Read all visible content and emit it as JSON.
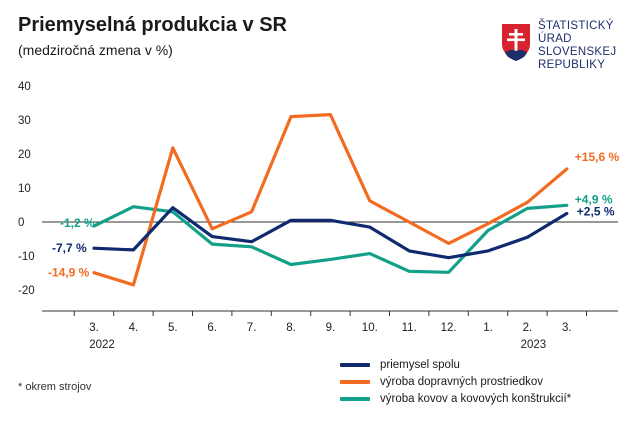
{
  "header": {
    "title": "Priemyselná produkcia v SR",
    "subtitle": "(medziročná zmena v %)"
  },
  "logo": {
    "lines": [
      "ŠTATISTICKÝ",
      "ÚRAD",
      "SLOVENSKEJ",
      "REPUBLIKY"
    ],
    "color": "#1f2e6b",
    "shield_red": "#d7232e",
    "shield_blue": "#1f2e6b"
  },
  "footnote": "* okrem strojov",
  "chart_data": {
    "type": "line",
    "title": "Priemyselná produkcia v SR",
    "subtitle": "(medziročná zmena v %)",
    "ylim": [
      -25,
      40
    ],
    "yticks": [
      -20,
      -10,
      0,
      10,
      20,
      30,
      40
    ],
    "ytick_labels": [
      "-20",
      "-10",
      "0",
      "10",
      "20",
      "30",
      "40"
    ],
    "categories": [
      "3.",
      "4.",
      "5.",
      "6.",
      "7.",
      "8.",
      "9.",
      "10.",
      "11.",
      "12.",
      "1.",
      "2.",
      "3."
    ],
    "year_labels": [
      {
        "label": "2022",
        "at_index": 0
      },
      {
        "label": "2023",
        "at_index": 11
      }
    ],
    "grid": "horizontal-zero-line-only",
    "legend_position": "bottom-right",
    "series": [
      {
        "name": "priemysel spolu",
        "color": "#0f2a6e",
        "values": [
          -7.7,
          -8.2,
          4.2,
          -4.3,
          -5.8,
          0.5,
          0.5,
          -1.5,
          -8.5,
          -10.5,
          -8.5,
          -4.5,
          2.5
        ],
        "start_label": "-7,7 %",
        "end_label": "+2,5 %"
      },
      {
        "name": "výroba dopravných prostriedkov",
        "color": "#f26b21",
        "values": [
          -14.9,
          -18.5,
          21.8,
          -2,
          3,
          31,
          31.6,
          6.2,
          0,
          -6.3,
          -0.5,
          5.8,
          15.6
        ],
        "start_label": "-14,9 %",
        "end_label": "+15,6 %"
      },
      {
        "name": "výroba kovov a kovových konštrukcií*",
        "color": "#12a08a",
        "values": [
          -1.2,
          4.5,
          3,
          -6.5,
          -7.3,
          -12.5,
          -11,
          -9.3,
          -14.5,
          -14.8,
          -2.5,
          4,
          4.9
        ],
        "start_label": "-1,2 %",
        "end_label": "+4,9 %"
      }
    ]
  }
}
